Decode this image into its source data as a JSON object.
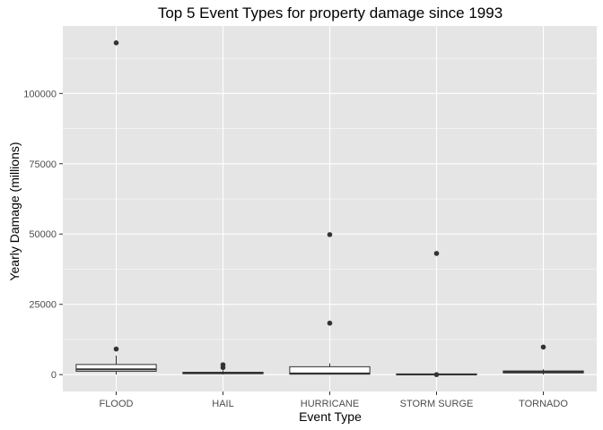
{
  "chart_data": {
    "type": "boxplot",
    "title": "Top 5 Event Types for property damage since 1993",
    "xlabel": "Event Type",
    "ylabel": "Yearly Damage (millions)",
    "ylim": [
      -6000,
      124000
    ],
    "yticks": [
      0,
      25000,
      50000,
      75000,
      100000
    ],
    "ytick_labels": [
      "0",
      "25000",
      "50000",
      "75000",
      "100000"
    ],
    "grid": true,
    "colors": {
      "panel": "#e5e5e5",
      "grid_major": "#ffffff",
      "box_fill": "#ffffff",
      "box_line": "#333333",
      "outlier": "#333333"
    },
    "categories": [
      "FLOOD",
      "HAIL",
      "HURRICANE",
      "STORM SURGE",
      "TORNADO"
    ],
    "boxes": [
      {
        "label": "FLOOD",
        "whisker_low": 0,
        "q1": 1200,
        "median": 1900,
        "q3": 3600,
        "whisker_high": 6800,
        "outliers": [
          9100,
          118000
        ]
      },
      {
        "label": "HAIL",
        "whisker_low": 0,
        "q1": 300,
        "median": 550,
        "q3": 850,
        "whisker_high": 1500,
        "outliers": [
          2500,
          3500
        ]
      },
      {
        "label": "HURRICANE",
        "whisker_low": 0,
        "q1": 150,
        "median": 400,
        "q3": 2800,
        "whisker_high": 4000,
        "outliers": [
          18300,
          49800
        ]
      },
      {
        "label": "STORM SURGE",
        "whisker_low": 0,
        "q1": 20,
        "median": 60,
        "q3": 250,
        "whisker_high": 500,
        "outliers": [
          0,
          43100
        ]
      },
      {
        "label": "TORNADO",
        "whisker_low": 0,
        "q1": 600,
        "median": 900,
        "q3": 1300,
        "whisker_high": 1900,
        "outliers": [
          9800
        ]
      }
    ]
  }
}
